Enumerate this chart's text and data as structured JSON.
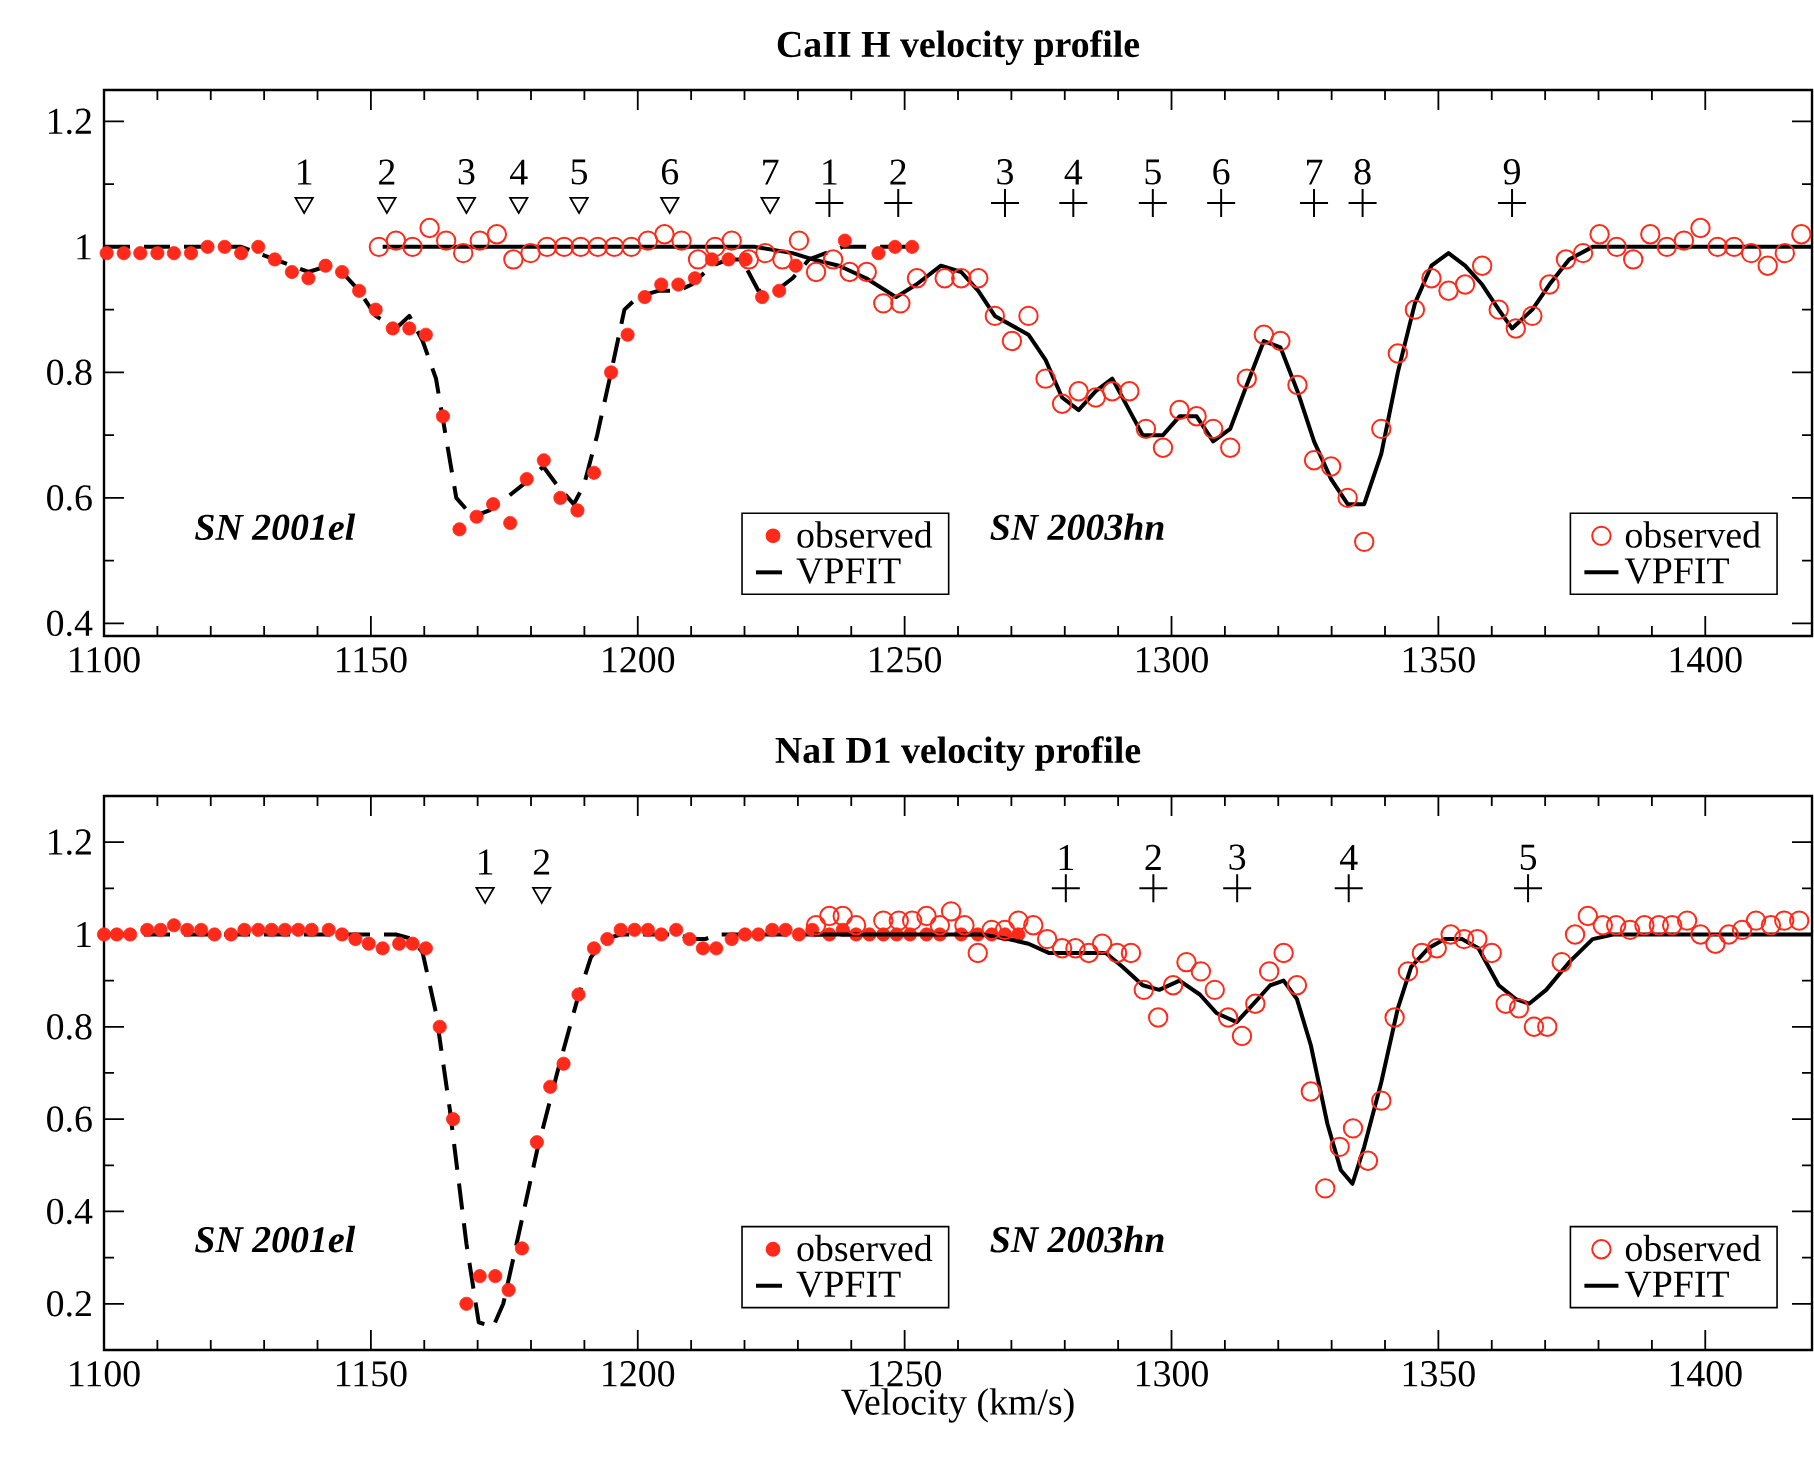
{
  "chart_data": [
    {
      "type": "line",
      "title": "CaII H velocity profile",
      "xlim": [
        1100,
        1420
      ],
      "ylim": [
        0.38,
        1.25
      ],
      "xticks": [
        1100,
        1150,
        1200,
        1250,
        1300,
        1350,
        1400
      ],
      "yticks": [
        0.4,
        0.6,
        0.8,
        1,
        1.2
      ],
      "legend": "bottom right",
      "annotations": [
        "SN 2001el",
        "SN 2003hn",
        {
          "text": "1",
          "x": 1137.5,
          "y": 1.07
        },
        {
          "text": "2",
          "x": 1153.0,
          "y": 1.07
        },
        {
          "text": "3",
          "x": 1167.9,
          "y": 1.07
        },
        {
          "text": "4",
          "x": 1177.7,
          "y": 1.07
        },
        {
          "text": "5",
          "x": 1189.0,
          "y": 1.07
        },
        {
          "text": "6",
          "x": 1206.0,
          "y": 1.07
        },
        {
          "text": "7",
          "x": 1224.8,
          "y": 1.07
        },
        {
          "text": "1",
          "x": 1235.9,
          "y": 1.07
        },
        {
          "text": "2",
          "x": 1248.8,
          "y": 1.07
        },
        {
          "text": "3",
          "x": 1268.8,
          "y": 1.07
        },
        {
          "text": "4",
          "x": 1281.6,
          "y": 1.07
        },
        {
          "text": "5",
          "x": 1296.5,
          "y": 1.07
        },
        {
          "text": "6",
          "x": 1309.3,
          "y": 1.07
        },
        {
          "text": "7",
          "x": 1326.7,
          "y": 1.07
        },
        {
          "text": "8",
          "x": 1335.8,
          "y": 1.07
        },
        {
          "text": "9",
          "x": 1363.8,
          "y": 1.07
        }
      ],
      "series": [
        {
          "name": "observed",
          "type": "scatter",
          "marker": "circle",
          "color": "#ff2a1a",
          "x": [
            1100.5,
            1103.7,
            1106.8,
            1110.0,
            1113.1,
            1116.3,
            1119.4,
            1122.6,
            1125.7,
            1128.9,
            1132.0,
            1135.2,
            1138.3,
            1141.5,
            1144.6,
            1147.8,
            1150.9,
            1154.1,
            1157.2,
            1160.3,
            1163.5,
            1166.6,
            1169.8,
            1172.9,
            1176.1,
            1179.2,
            1182.4,
            1185.5,
            1188.7,
            1191.8,
            1195.0,
            1198.1,
            1201.3,
            1204.4,
            1207.6,
            1210.7,
            1213.9,
            1217.0,
            1220.2,
            1223.3,
            1226.5,
            1229.6,
            1238.8,
            1245.1,
            1248.2,
            1251.4
          ],
          "values": [
            0.99,
            0.99,
            0.99,
            0.99,
            0.99,
            0.99,
            1.0,
            1.0,
            0.99,
            1.0,
            0.98,
            0.96,
            0.95,
            0.97,
            0.96,
            0.93,
            0.9,
            0.87,
            0.87,
            0.86,
            0.73,
            0.55,
            0.57,
            0.59,
            0.56,
            0.63,
            0.66,
            0.6,
            0.58,
            0.64,
            0.8,
            0.86,
            0.92,
            0.94,
            0.94,
            0.95,
            0.98,
            0.98,
            0.98,
            0.92,
            0.93,
            0.97,
            1.01,
            0.99,
            1.0,
            1.0
          ]
        },
        {
          "name": "VPFIT",
          "line_style": "dashed",
          "color": "#000000",
          "x": [
            1100,
            1116.9,
            1125.7,
            1132,
            1135.2,
            1138.3,
            1142,
            1144.6,
            1147.8,
            1150.9,
            1154.7,
            1157.2,
            1159.7,
            1162.2,
            1166,
            1169.1,
            1172.2,
            1175.4,
            1179.8,
            1182.3,
            1184.9,
            1188,
            1189.9,
            1192.4,
            1195,
            1197.5,
            1200,
            1203.8,
            1207.6,
            1210.1,
            1213.9,
            1217,
            1219.5,
            1222.6,
            1225.9,
            1229,
            1232.1,
            1235.2,
            1238.4,
            1251.6
          ],
          "values": [
            1,
            1,
            1,
            0.98,
            0.97,
            0.96,
            0.97,
            0.96,
            0.93,
            0.89,
            0.87,
            0.89,
            0.85,
            0.79,
            0.6,
            0.57,
            0.58,
            0.6,
            0.63,
            0.65,
            0.62,
            0.59,
            0.62,
            0.7,
            0.8,
            0.9,
            0.92,
            0.93,
            0.93,
            0.94,
            0.97,
            0.98,
            0.98,
            0.93,
            0.93,
            0.95,
            0.98,
            0.99,
            1,
            1
          ]
        },
        {
          "name": "observed",
          "type": "scatter",
          "marker": "circle",
          "color": "#ff2a1a",
          "x": [
            1151.5,
            1154.7,
            1157.8,
            1161,
            1164.1,
            1167.3,
            1170.4,
            1173.6,
            1176.7,
            1179.9,
            1183,
            1186.2,
            1189.3,
            1192.5,
            1195.6,
            1198.8,
            1201.9,
            1205,
            1208.2,
            1211.3,
            1214.5,
            1217.6,
            1220.8,
            1223.9,
            1227.1,
            1230.2,
            1233.4,
            1236.6,
            1239.7,
            1242.9,
            1246,
            1249.2,
            1252.3,
            1257.5,
            1260.6,
            1263.8,
            1266.9,
            1270.1,
            1273.2,
            1276.4,
            1279.5,
            1282.6,
            1285.8,
            1288.9,
            1292.1,
            1295.2,
            1298.4,
            1301.5,
            1304.7,
            1307.8,
            1311,
            1314.1,
            1317.3,
            1320.4,
            1323.6,
            1326.7,
            1329.9,
            1333,
            1336.1,
            1339.3,
            1342.4,
            1345.6,
            1348.7,
            1351.9,
            1355,
            1358.2,
            1361.3,
            1364.5,
            1367.6,
            1370.8,
            1373.9,
            1377.1,
            1380.2,
            1383.4,
            1386.5,
            1389.7,
            1392.8,
            1396,
            1399.1,
            1402.3,
            1405.4,
            1408.6,
            1411.7,
            1414.9,
            1418
          ],
          "values": [
            1.0,
            1.01,
            1.0,
            1.03,
            1.01,
            0.99,
            1.01,
            1.02,
            0.98,
            0.99,
            1.0,
            1.0,
            1.0,
            1.0,
            1.0,
            1.0,
            1.01,
            1.02,
            1.01,
            0.98,
            1.0,
            1.01,
            0.98,
            0.99,
            0.98,
            1.01,
            0.96,
            0.98,
            0.96,
            0.96,
            0.91,
            0.91,
            0.95,
            0.95,
            0.95,
            0.95,
            0.89,
            0.85,
            0.89,
            0.79,
            0.75,
            0.77,
            0.76,
            0.77,
            0.77,
            0.71,
            0.68,
            0.74,
            0.73,
            0.71,
            0.68,
            0.79,
            0.86,
            0.85,
            0.78,
            0.66,
            0.65,
            0.6,
            0.53,
            0.71,
            0.83,
            0.9,
            0.95,
            0.93,
            0.94,
            0.97,
            0.9,
            0.87,
            0.89,
            0.94,
            0.98,
            0.99,
            1.02,
            1.0,
            0.98,
            1.02,
            1.0,
            1.01,
            1.03,
            1.0,
            1.0,
            0.99,
            0.97,
            0.99,
            1.02
          ]
        },
        {
          "name": "VPFIT",
          "line_style": "solid",
          "color": "#000000",
          "x": [
            1152.2,
            1222,
            1229,
            1232.8,
            1237.7,
            1242.8,
            1248.4,
            1252.2,
            1256.8,
            1260.6,
            1263.8,
            1266.9,
            1273.2,
            1276.4,
            1279.5,
            1282.6,
            1285.8,
            1288.9,
            1294.6,
            1298.4,
            1301.5,
            1304.7,
            1307.8,
            1311,
            1314.1,
            1317.3,
            1320.4,
            1323.6,
            1326.7,
            1329.9,
            1333,
            1336.1,
            1339.3,
            1342.4,
            1345.6,
            1348.7,
            1351.9,
            1355,
            1358.2,
            1361.3,
            1363.8,
            1367.6,
            1370.8,
            1374.5,
            1378.9,
            1382.6,
            1420
          ],
          "values": [
            1,
            1,
            0.99,
            0.98,
            0.97,
            0.95,
            0.92,
            0.94,
            0.97,
            0.96,
            0.93,
            0.89,
            0.86,
            0.82,
            0.76,
            0.74,
            0.77,
            0.79,
            0.7,
            0.7,
            0.73,
            0.73,
            0.69,
            0.71,
            0.78,
            0.85,
            0.84,
            0.77,
            0.69,
            0.63,
            0.59,
            0.59,
            0.67,
            0.8,
            0.91,
            0.97,
            0.99,
            0.97,
            0.94,
            0.9,
            0.87,
            0.9,
            0.94,
            0.98,
            1,
            1,
            1
          ]
        },
        {
          "type": "scatter",
          "marker": "triangle",
          "color": "#000000",
          "x": [
            1137.5,
            1153.0,
            1167.9,
            1177.7,
            1189.0,
            1206.0,
            1224.8
          ],
          "values": [
            1.07,
            1.07,
            1.07,
            1.07,
            1.07,
            1.07,
            1.07
          ]
        },
        {
          "type": "scatter",
          "marker": "cross",
          "color": "#000000",
          "x": [
            1235.9,
            1248.8,
            1268.8,
            1281.6,
            1296.5,
            1309.3,
            1326.7,
            1335.8,
            1363.8
          ],
          "values": [
            1.07,
            1.07,
            1.07,
            1.07,
            1.07,
            1.07,
            1.07,
            1.07,
            1.07
          ]
        }
      ]
    },
    {
      "type": "line",
      "title": "NaI D1 velocity profile",
      "xlabel": "Velocity (km/s)",
      "xlim": [
        1100,
        1420
      ],
      "ylim": [
        0.1,
        1.3
      ],
      "xticks": [
        1100,
        1150,
        1200,
        1250,
        1300,
        1350,
        1400
      ],
      "yticks": [
        0.2,
        0.4,
        0.6,
        0.8,
        1,
        1.2
      ],
      "legend": "bottom right",
      "annotations": [
        "SN 2001el",
        "SN 2003hn",
        {
          "text": "1",
          "x": 1171.4,
          "y": 1.09
        },
        {
          "text": "2",
          "x": 1182,
          "y": 1.09
        },
        {
          "text": "1",
          "x": 1280.2,
          "y": 1.1
        },
        {
          "text": "2",
          "x": 1296.6,
          "y": 1.1
        },
        {
          "text": "3",
          "x": 1312.3,
          "y": 1.1
        },
        {
          "text": "4",
          "x": 1333.2,
          "y": 1.1
        },
        {
          "text": "5",
          "x": 1366.8,
          "y": 1.1
        }
      ],
      "series": [
        {
          "name": "observed",
          "type": "scatter",
          "marker": "circle",
          "color": "#ff2a1a",
          "x": [
            1100,
            1102.4,
            1104.9,
            1108.1,
            1110.6,
            1113.1,
            1115.6,
            1118.2,
            1120.7,
            1123.8,
            1126.3,
            1128.9,
            1131.4,
            1133.9,
            1136.4,
            1138.9,
            1142.1,
            1144.6,
            1147.1,
            1149.6,
            1152.2,
            1155.3,
            1157.8,
            1160.3,
            1162.9,
            1165.4,
            1167.9,
            1170.4,
            1173.3,
            1175.8,
            1178.3,
            1181.1,
            1183.6,
            1186.1,
            1188.9,
            1191.8,
            1194.3,
            1196.8,
            1199.4,
            1201.9,
            1204.4,
            1207.2,
            1209.7,
            1212.2,
            1214.7,
            1217.6,
            1220.1,
            1222.6,
            1225.2,
            1227.7,
            1230.2,
            1232.7,
            1235.9,
            1238.4,
            1240.9,
            1243.4,
            1246,
            1248.5,
            1251,
            1254.1,
            1256.6,
            1260.6,
            1263.7,
            1266.3,
            1268.8,
            1271.3
          ],
          "values": [
            1,
            1,
            1,
            1.01,
            1.01,
            1.02,
            1.01,
            1.01,
            1,
            1,
            1.01,
            1.01,
            1.01,
            1.01,
            1.01,
            1.01,
            1.01,
            1,
            0.99,
            0.98,
            0.97,
            0.98,
            0.98,
            0.97,
            0.8,
            0.6,
            0.2,
            0.26,
            0.26,
            0.23,
            0.32,
            0.55,
            0.67,
            0.72,
            0.87,
            0.97,
            0.99,
            1.01,
            1.01,
            1.01,
            1,
            1.01,
            0.99,
            0.97,
            0.97,
            0.99,
            1,
            1,
            1.01,
            1.01,
            1,
            1.01,
            1,
            1.01,
            1,
            1,
            1,
            1,
            1,
            1,
            1,
            1,
            1,
            1,
            1,
            1
          ]
        },
        {
          "name": "VPFIT",
          "line_style": "dashed",
          "color": "#000000",
          "x": [
            1100,
            1150,
            1154.7,
            1157.8,
            1159.7,
            1162.2,
            1164.8,
            1167.9,
            1170.2,
            1172.9,
            1174.8,
            1177.3,
            1181.1,
            1184.9,
            1188.7,
            1191.2,
            1193.8,
            1196.8,
            1207.5,
            1210.1,
            1212.6,
            1215.2,
            1270
          ],
          "values": [
            1,
            1,
            1,
            0.99,
            0.96,
            0.83,
            0.62,
            0.33,
            0.16,
            0.15,
            0.2,
            0.33,
            0.53,
            0.7,
            0.86,
            0.95,
            0.99,
            1,
            1,
            0.99,
            0.99,
            1,
            1
          ]
        },
        {
          "name": "observed",
          "type": "scatter",
          "marker": "circle",
          "color": "#ff2a1a",
          "x": [
            1233.4,
            1235.9,
            1238.4,
            1240.9,
            1246,
            1248.9,
            1251.4,
            1254.1,
            1256.6,
            1258.7,
            1261.2,
            1263.7,
            1266.3,
            1268.8,
            1271.3,
            1274.1,
            1276.7,
            1279.5,
            1282,
            1284.5,
            1287,
            1289.8,
            1292.4,
            1294.8,
            1297.5,
            1300.3,
            1302.8,
            1305.5,
            1308.1,
            1310.6,
            1313.2,
            1315.7,
            1318.3,
            1321,
            1323.5,
            1326.1,
            1328.8,
            1331.5,
            1334,
            1336.8,
            1339.3,
            1341.8,
            1344.3,
            1346.9,
            1349.7,
            1352.3,
            1354.8,
            1357.3,
            1360,
            1362.6,
            1365.1,
            1367.9,
            1370.4,
            1373.1,
            1375.6,
            1378,
            1380.8,
            1383.3,
            1385.9,
            1388.6,
            1391.3,
            1393.8,
            1396.6,
            1399.1,
            1401.9,
            1404.4,
            1406.9,
            1409.5,
            1412.3,
            1414.8,
            1417.6
          ],
          "values": [
            1.02,
            1.04,
            1.04,
            1.02,
            1.03,
            1.03,
            1.03,
            1.04,
            1.02,
            1.05,
            1.02,
            0.96,
            1.01,
            1.01,
            1.03,
            1.02,
            0.99,
            0.97,
            0.97,
            0.96,
            0.98,
            0.96,
            0.96,
            0.88,
            0.82,
            0.89,
            0.94,
            0.92,
            0.88,
            0.82,
            0.78,
            0.85,
            0.92,
            0.96,
            0.89,
            0.66,
            0.45,
            0.54,
            0.58,
            0.51,
            0.64,
            0.82,
            0.92,
            0.96,
            0.97,
            1,
            0.99,
            0.99,
            0.96,
            0.85,
            0.84,
            0.8,
            0.8,
            0.94,
            1,
            1.04,
            1.02,
            1.02,
            1.01,
            1.02,
            1.02,
            1.02,
            1.03,
            1,
            0.98,
            1,
            1.01,
            1.03,
            1.02,
            1.03,
            1.03
          ]
        },
        {
          "name": "VPFIT",
          "line_style": "solid",
          "color": "#000000",
          "x": [
            1233,
            1256.8,
            1264.4,
            1269.4,
            1273.2,
            1277,
            1280.7,
            1287.7,
            1290.8,
            1294.6,
            1297.7,
            1301.5,
            1305.3,
            1308.4,
            1312.2,
            1315.4,
            1318.5,
            1321,
            1323.5,
            1326.1,
            1329.2,
            1331.7,
            1333.9,
            1336.1,
            1339.3,
            1342.4,
            1344.9,
            1348.1,
            1351.2,
            1354.4,
            1357.5,
            1361.3,
            1364.5,
            1367,
            1370.2,
            1374.5,
            1378.9,
            1382.7,
            1420
          ],
          "values": [
            1,
            1,
            1,
            0.99,
            0.98,
            0.96,
            0.96,
            0.96,
            0.93,
            0.89,
            0.88,
            0.9,
            0.87,
            0.83,
            0.81,
            0.85,
            0.89,
            0.9,
            0.86,
            0.76,
            0.59,
            0.49,
            0.46,
            0.54,
            0.68,
            0.84,
            0.93,
            0.97,
            0.99,
            0.99,
            0.97,
            0.89,
            0.86,
            0.85,
            0.88,
            0.94,
            0.99,
            1,
            1
          ]
        },
        {
          "type": "scatter",
          "marker": "triangle",
          "color": "#000000",
          "x": [
            1171.4,
            1182
          ],
          "values": [
            1.09,
            1.09
          ]
        },
        {
          "type": "scatter",
          "marker": "cross",
          "color": "#000000",
          "x": [
            1280.2,
            1296.6,
            1312.3,
            1333.2,
            1366.8
          ],
          "values": [
            1.1,
            1.1,
            1.1,
            1.1,
            1.1
          ]
        }
      ]
    }
  ]
}
